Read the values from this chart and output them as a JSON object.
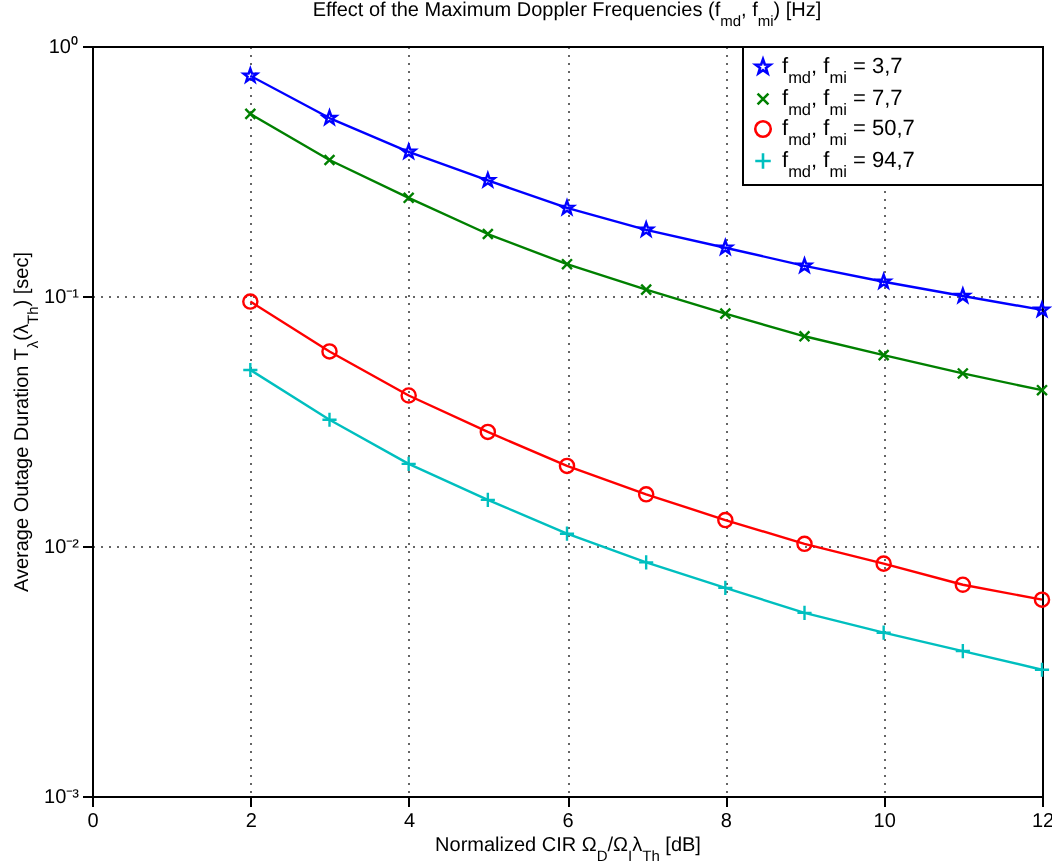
{
  "chart_data": {
    "type": "line",
    "title": "Effect of the Maximum Doppler Frequencies (f$_{md}$, f$_{mi}$) [Hz]",
    "xlabel": "Normalized CIR Ω$_{D}$/Ω$_{I}$λ$_{Th}$ [dB]",
    "ylabel": "Average Outage Duration T$_{λ}$(λ$_{Th}$) [sec]",
    "x": [
      2,
      3,
      4,
      5,
      6,
      7,
      8,
      9,
      10,
      11,
      12
    ],
    "series": [
      {
        "name": "f$_{md}$, f$_{mi}$ = 3,7",
        "color": "#0000ff",
        "marker": "star",
        "values": [
          0.76,
          0.515,
          0.377,
          0.29,
          0.225,
          0.184,
          0.156,
          0.132,
          0.114,
          0.1,
          0.088
        ]
      },
      {
        "name": "f$_{md}$, f$_{mi}$ = 7,7",
        "color": "#008000",
        "marker": "cross",
        "values": [
          0.535,
          0.35,
          0.247,
          0.177,
          0.134,
          0.106,
          0.085,
          0.069,
          0.058,
          0.049,
          0.042
        ]
      },
      {
        "name": "f$_{md}$, f$_{mi}$ = 50,7",
        "color": "#ff0000",
        "marker": "circle",
        "values": [
          0.095,
          0.06,
          0.04,
          0.0286,
          0.0209,
          0.0161,
          0.0127,
          0.0102,
          0.0085,
          0.007,
          0.0061
        ]
      },
      {
        "name": "f$_{md}$, f$_{mi}$ = 94,7",
        "color": "#00bfbf",
        "marker": "plus",
        "values": [
          0.0506,
          0.032,
          0.0213,
          0.0153,
          0.0112,
          0.0086,
          0.0068,
          0.0054,
          0.0045,
          0.0038,
          0.0032
        ]
      }
    ],
    "xlim": [
      0,
      12
    ],
    "xticks": [
      0,
      2,
      4,
      6,
      8,
      10,
      12
    ],
    "ylim": [
      0.001,
      1
    ],
    "yticks": [
      {
        "value": 0.001,
        "label": "10⁻³"
      },
      {
        "value": 0.01,
        "label": "10⁻²"
      },
      {
        "value": 0.1,
        "label": "10⁻¹"
      },
      {
        "value": 1,
        "label": "10⁰"
      }
    ],
    "log": "y",
    "grid": true,
    "legend": "top right",
    "line_style": "solid"
  }
}
